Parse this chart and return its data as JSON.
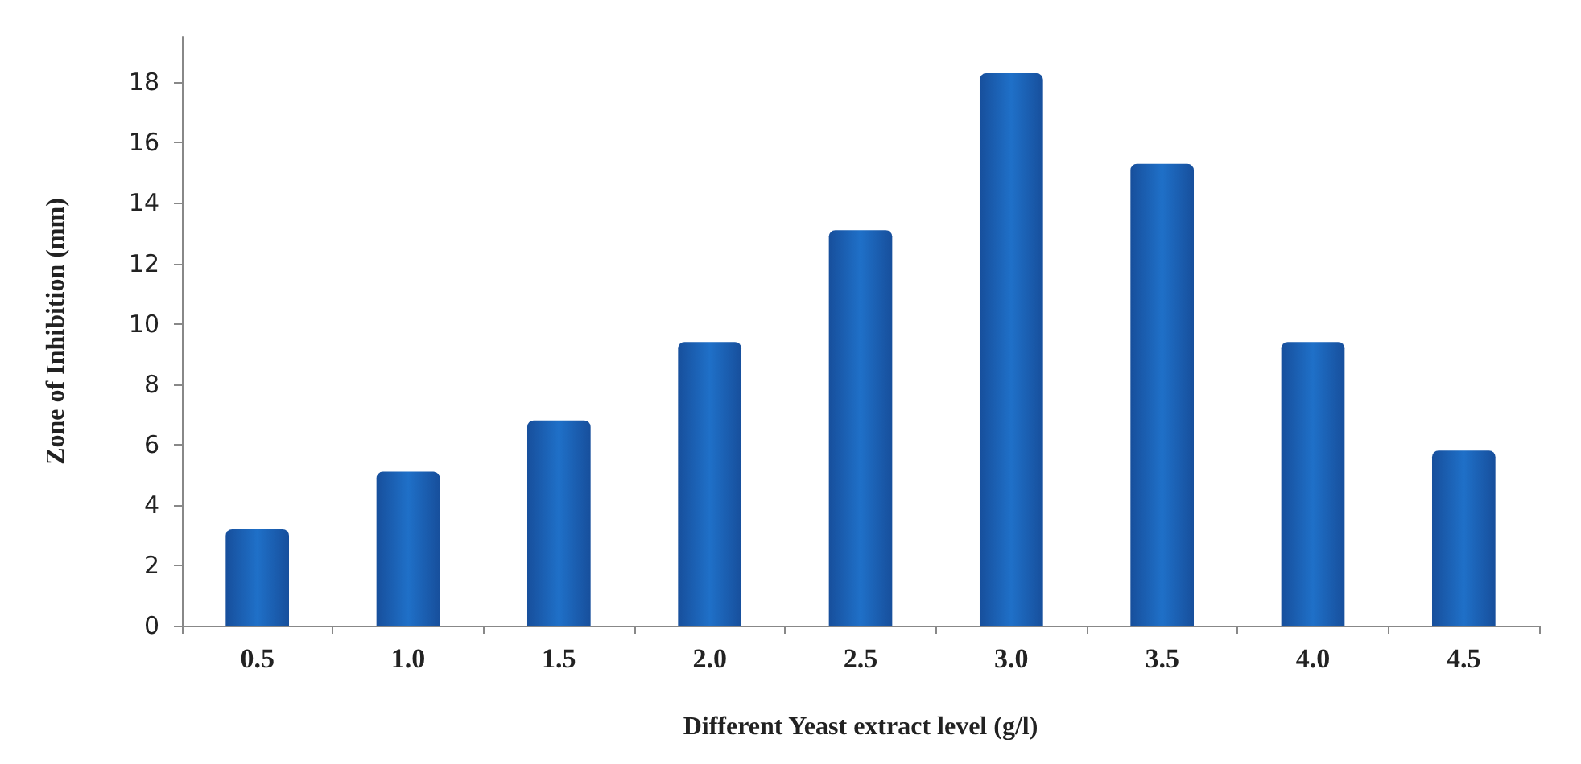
{
  "chart_data": {
    "type": "bar",
    "xlabel": "Different Yeast extract level (g/l)",
    "ylabel": "Zone of Inhibition (mm)",
    "categories": [
      "0.5",
      "1.0",
      "1.5",
      "2.0",
      "2.5",
      "3.0",
      "3.5",
      "4.0",
      "4.5"
    ],
    "values": [
      3.2,
      5.1,
      6.8,
      9.4,
      13.1,
      18.3,
      15.3,
      9.4,
      5.8
    ],
    "color": "#1f70c8",
    "ylim": [
      0,
      19.5
    ],
    "yticks": [
      0,
      2,
      4,
      6,
      8,
      10,
      12,
      14,
      16,
      18
    ],
    "grid": false
  }
}
